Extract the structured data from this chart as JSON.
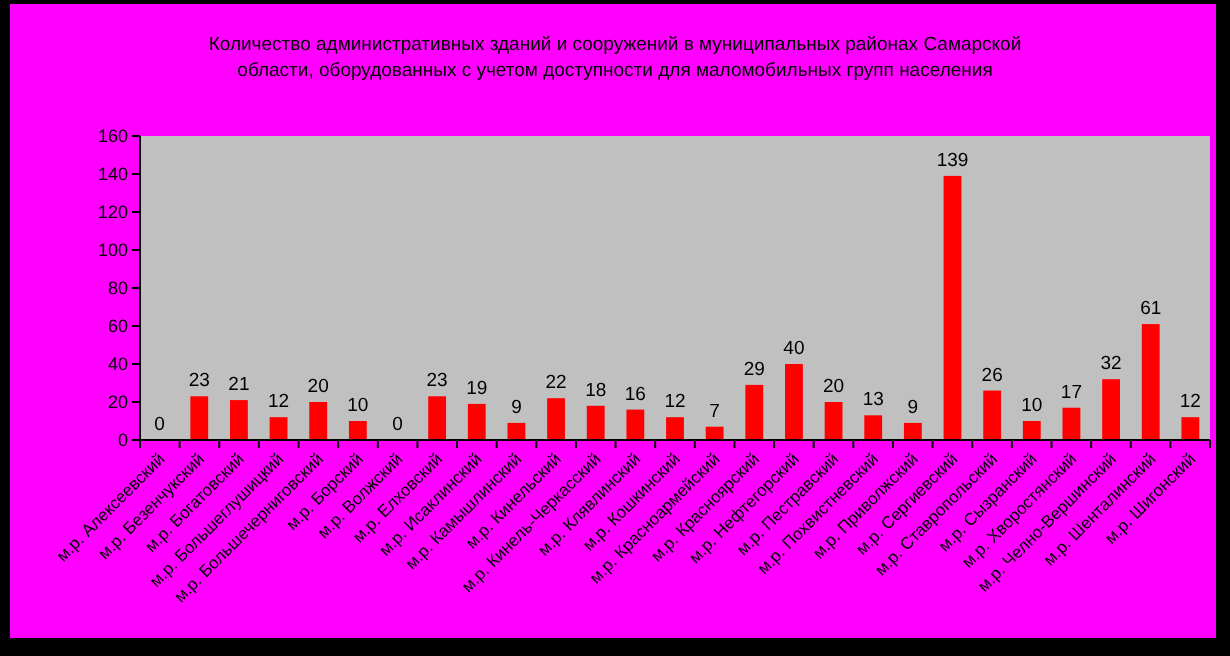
{
  "chart_data": {
    "type": "bar",
    "title": "Количество административных зданий и сооружений в муниципальных районах Самарской области, оборудованных с учетом доступности для маломобильных групп населения",
    "categories": [
      "м.р. Алексеевский",
      "м.р. Безенчукский",
      "м.р. Богатовский",
      "м.р. Большеглушицкий",
      "м.р. Большечерниговский",
      "м.р. Борский",
      "м.р. Волжский",
      "м.р. Елховский",
      "м.р. Исаклинский",
      "м.р. Камышлинский",
      "м.р. Кинельский",
      "м.р. Кинель-Черкасский",
      "м.р. Клявлинский",
      "м.р. Кошкинский",
      "м.р. Красноармейский",
      "м.р. Красноярский",
      "м.р. Нефтегорский",
      "м.р. Пестравский",
      "м.р. Похвистневский",
      "м.р. Приволжский",
      "м.р. Сергиевский",
      "м.р. Ставропольский",
      "м.р. Сызранский",
      "м.р. Хворостянский",
      "м.р. Челно-Вершинский",
      "м.р. Шенталинский",
      "м.р. Шигонский"
    ],
    "values": [
      0,
      23,
      21,
      12,
      20,
      10,
      0,
      23,
      19,
      9,
      22,
      18,
      16,
      12,
      7,
      29,
      40,
      20,
      13,
      9,
      139,
      26,
      10,
      17,
      32,
      61,
      12
    ],
    "color": "#ff0000",
    "ylim": [
      0,
      160
    ],
    "yticks": [
      0,
      20,
      40,
      60,
      80,
      100,
      120,
      140,
      160
    ],
    "data_labels": true
  }
}
